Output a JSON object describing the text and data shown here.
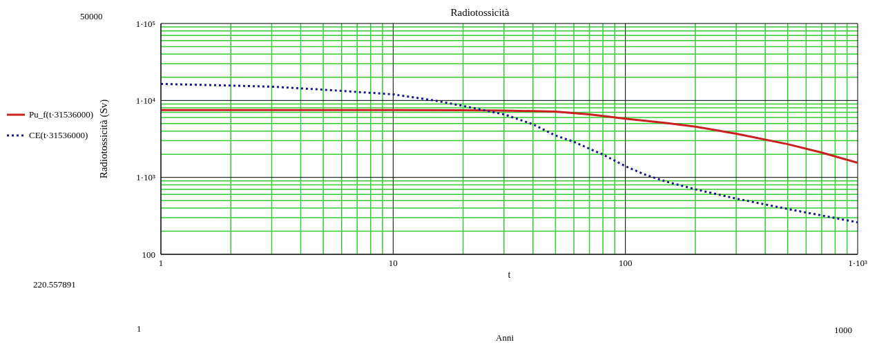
{
  "chart_data": {
    "type": "line",
    "title": "Radiotossicità",
    "xlabel": "t",
    "ylabel": "Radiotossicità (Sv)",
    "log": "xy",
    "grid": true,
    "legend": "left",
    "marker": "none",
    "xlim": [
      1,
      1000
    ],
    "xticks": [
      1,
      {
        "value": 2,
        "label": null
      },
      {
        "value": 3,
        "label": null
      },
      {
        "value": 4,
        "label": null
      },
      {
        "value": 5,
        "label": null
      },
      {
        "value": 6,
        "label": null
      },
      {
        "value": 7,
        "label": null
      },
      {
        "value": 8,
        "label": null
      },
      {
        "value": 9,
        "label": null
      },
      10,
      {
        "value": 20,
        "label": null
      },
      {
        "value": 30,
        "label": null
      },
      {
        "value": 40,
        "label": null
      },
      {
        "value": 50,
        "label": null
      },
      {
        "value": 60,
        "label": null
      },
      {
        "value": 70,
        "label": null
      },
      {
        "value": 80,
        "label": null
      },
      {
        "value": 90,
        "label": null
      },
      100,
      {
        "value": 200,
        "label": null
      },
      {
        "value": 300,
        "label": null
      },
      {
        "value": 400,
        "label": null
      },
      {
        "value": 500,
        "label": null
      },
      {
        "value": 600,
        "label": null
      },
      {
        "value": 700,
        "label": null
      },
      {
        "value": 800,
        "label": null
      },
      {
        "value": 900,
        "label": null
      },
      {
        "value": 1000,
        "label": "1·10³"
      }
    ],
    "ylim": [
      100,
      100000
    ],
    "yticks": [
      100,
      {
        "value": 200,
        "label": null
      },
      {
        "value": 300,
        "label": null
      },
      {
        "value": 400,
        "label": null
      },
      {
        "value": 500,
        "label": null
      },
      {
        "value": 600,
        "label": null
      },
      {
        "value": 700,
        "label": null
      },
      {
        "value": 800,
        "label": null
      },
      {
        "value": 900,
        "label": null
      },
      {
        "value": 1000,
        "label": "1·10³"
      },
      {
        "value": 2000,
        "label": null
      },
      {
        "value": 3000,
        "label": null
      },
      {
        "value": 4000,
        "label": null
      },
      {
        "value": 5000,
        "label": null
      },
      {
        "value": 6000,
        "label": null
      },
      {
        "value": 7000,
        "label": null
      },
      {
        "value": 8000,
        "label": null
      },
      {
        "value": 9000,
        "label": null
      },
      {
        "value": 10000,
        "label": "1·10⁴"
      },
      {
        "value": 20000,
        "label": null
      },
      {
        "value": 30000,
        "label": null
      },
      {
        "value": 40000,
        "label": null
      },
      {
        "value": 50000,
        "label": null
      },
      {
        "value": 60000,
        "label": null
      },
      {
        "value": 70000,
        "label": null
      },
      {
        "value": 80000,
        "label": null
      },
      {
        "value": 90000,
        "label": null
      },
      {
        "value": 100000,
        "label": "1·10⁵"
      }
    ],
    "series": [
      {
        "name": "Pu_f(t·31536000)",
        "color": "#cc2020",
        "line_style": "solid",
        "x": [
          1,
          5,
          10,
          20,
          30,
          50,
          70,
          100,
          150,
          200,
          300,
          500,
          700,
          1000
        ],
        "values": [
          7500,
          7500,
          7500,
          7450,
          7400,
          7150,
          6600,
          5800,
          5100,
          4560,
          3700,
          2700,
          2100,
          1550
        ]
      },
      {
        "name": "CE(t·31536000)",
        "color": "#1a1a8c",
        "line_style": "dotted",
        "x": [
          1,
          2,
          3,
          5,
          10,
          15,
          20,
          30,
          40,
          50,
          60,
          70,
          80,
          100,
          120,
          150,
          200,
          300,
          500,
          700,
          1000
        ],
        "values": [
          16400,
          15600,
          15100,
          13800,
          12000,
          10000,
          8500,
          6600,
          4900,
          3500,
          2900,
          2360,
          1980,
          1400,
          1100,
          880,
          700,
          530,
          388,
          320,
          260
        ]
      }
    ],
    "annotations": [
      "50000",
      "220.557891",
      "1",
      "1000",
      "Anni"
    ]
  }
}
